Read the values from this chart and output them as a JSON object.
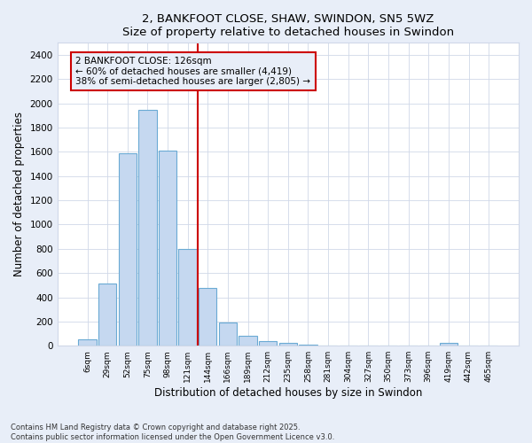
{
  "title1": "2, BANKFOOT CLOSE, SHAW, SWINDON, SN5 5WZ",
  "title2": "Size of property relative to detached houses in Swindon",
  "xlabel": "Distribution of detached houses by size in Swindon",
  "ylabel": "Number of detached properties",
  "categories": [
    "6sqm",
    "29sqm",
    "52sqm",
    "75sqm",
    "98sqm",
    "121sqm",
    "144sqm",
    "166sqm",
    "189sqm",
    "212sqm",
    "235sqm",
    "258sqm",
    "281sqm",
    "304sqm",
    "327sqm",
    "350sqm",
    "373sqm",
    "396sqm",
    "419sqm",
    "442sqm",
    "465sqm"
  ],
  "values": [
    50,
    510,
    1590,
    1950,
    1610,
    800,
    480,
    195,
    85,
    35,
    20,
    12,
    5,
    3,
    2,
    1,
    0,
    0,
    20,
    0,
    0
  ],
  "bar_color": "#c5d8f0",
  "bar_edge_color": "#6aaad4",
  "vline_color": "#cc0000",
  "annotation_text": "2 BANKFOOT CLOSE: 126sqm\n← 60% of detached houses are smaller (4,419)\n38% of semi-detached houses are larger (2,805) →",
  "annotation_box_edge": "#cc0000",
  "ylim": [
    0,
    2500
  ],
  "yticks": [
    0,
    200,
    400,
    600,
    800,
    1000,
    1200,
    1400,
    1600,
    1800,
    2000,
    2200,
    2400
  ],
  "footer": "Contains HM Land Registry data © Crown copyright and database right 2025.\nContains public sector information licensed under the Open Government Licence v3.0.",
  "outer_bg_color": "#e8eef8",
  "plot_bg_color": "#ffffff",
  "grid_color": "#d0d8e8"
}
